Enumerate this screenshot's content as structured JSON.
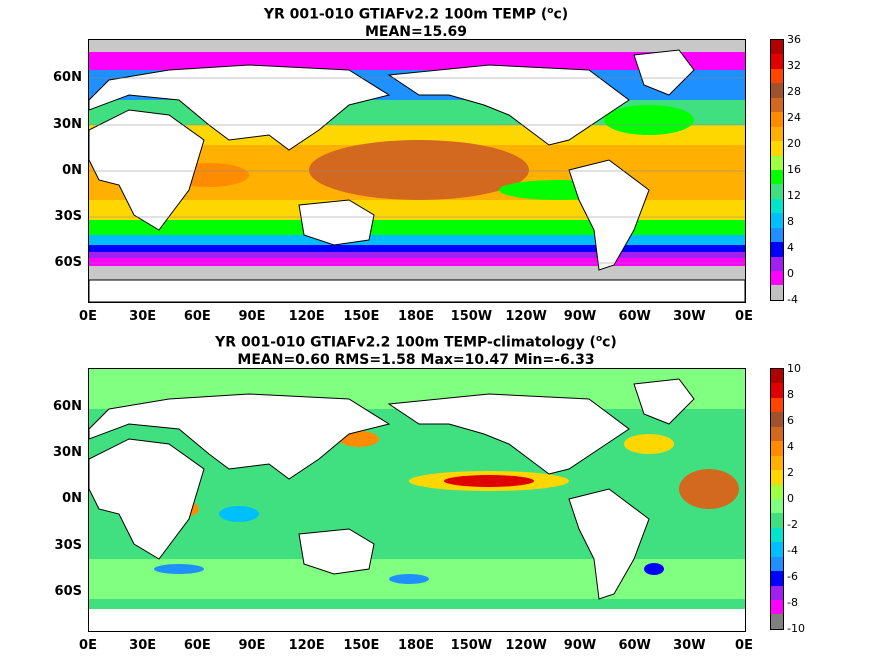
{
  "top": {
    "title_line1": "YR 001-010 GTIAFv2.2 100m TEMP (",
    "title_unit_sup": "o",
    "title_unit_tail": "c)",
    "title_line2": "MEAN=15.69",
    "lat_labels": [
      "60N",
      "30N",
      "0N",
      "30S",
      "60S"
    ],
    "lon_labels": [
      "0E",
      "30E",
      "60E",
      "90E",
      "120E",
      "150E",
      "180E",
      "150W",
      "120W",
      "90W",
      "60W",
      "30W",
      "0E"
    ],
    "colorbar": {
      "labels": [
        "36",
        "32",
        "28",
        "24",
        "20",
        "16",
        "12",
        "8",
        "4",
        "0",
        "-4"
      ],
      "colors": [
        "#c0c0c0",
        "#ff00ff",
        "#a020f0",
        "#0000ff",
        "#1e90ff",
        "#00bfff",
        "#00e5cc",
        "#40e080",
        "#00ff00",
        "#a0ff40",
        "#ffd700",
        "#ffb000",
        "#ff8c00",
        "#d2691e",
        "#a0522d",
        "#ff4500",
        "#e00000",
        "#b00000"
      ]
    }
  },
  "bottom": {
    "title_line1": "YR 001-010 GTIAFv2.2 100m TEMP-climatology (",
    "title_unit_sup": "o",
    "title_unit_tail": "c)",
    "title_line2": "MEAN=0.60   RMS=1.58   Max=10.47   Min=-6.33",
    "lat_labels": [
      "60N",
      "30N",
      "0N",
      "30S",
      "60S"
    ],
    "lon_labels": [
      "0E",
      "30E",
      "60E",
      "90E",
      "120E",
      "150E",
      "180E",
      "150W",
      "120W",
      "90W",
      "60W",
      "30W",
      "0E"
    ],
    "colorbar": {
      "labels": [
        "10",
        "8",
        "6",
        "4",
        "2",
        "0",
        "-2",
        "-4",
        "-6",
        "-8",
        "-10"
      ],
      "colors": [
        "#808080",
        "#ff00ff",
        "#a020f0",
        "#0000ff",
        "#1e90ff",
        "#00bfff",
        "#00e5cc",
        "#40e080",
        "#80ff80",
        "#a0ff40",
        "#ffd700",
        "#ffb000",
        "#ff8c00",
        "#d2691e",
        "#a0522d",
        "#ff4500",
        "#e00000",
        "#b00000"
      ]
    }
  },
  "map_colors": {
    "land": "#ffffff",
    "coast": "#000000",
    "ice": "#c8c8c8"
  }
}
